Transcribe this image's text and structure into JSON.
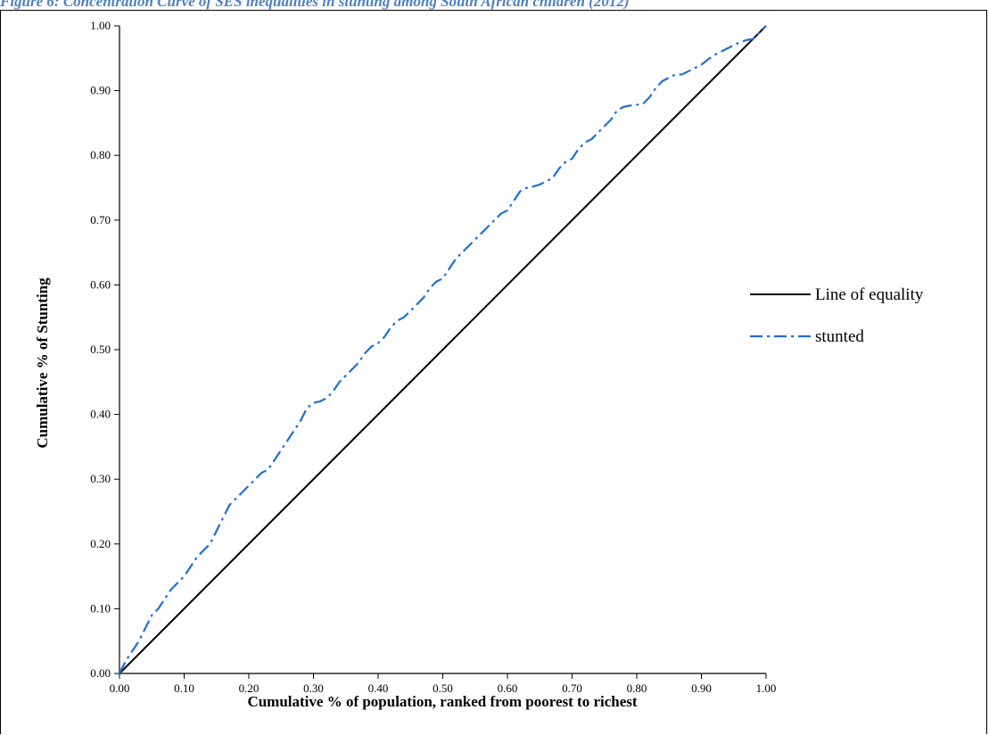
{
  "figure_caption": "Figure 6: Concentration Curve of SES inequalities in stunting among South African children (2012)",
  "chart_data": {
    "type": "line",
    "title": "Figure 6: Concentration Curve of SES inequalities in stunting among South African children (2012)",
    "xlabel": "Cumulative % of population, ranked from poorest to richest",
    "ylabel": "Cumulative % of Stunting",
    "xlim": [
      0,
      1
    ],
    "ylim": [
      0,
      1
    ],
    "x_ticks": [
      "0.00",
      "0.10",
      "0.20",
      "0.30",
      "0.40",
      "0.50",
      "0.60",
      "0.70",
      "0.80",
      "0.90",
      "1.00"
    ],
    "y_ticks": [
      "0.00",
      "0.10",
      "0.20",
      "0.30",
      "0.40",
      "0.50",
      "0.60",
      "0.70",
      "0.80",
      "0.90",
      "1.00"
    ],
    "grid": false,
    "legend_position": "right",
    "series": [
      {
        "name": "Line of equality",
        "color": "#000000",
        "style": "solid",
        "x": [
          0,
          1
        ],
        "y": [
          0,
          1
        ]
      },
      {
        "name": "stunted",
        "color": "#1f6fd1",
        "style": "dash-dot",
        "x": [
          0,
          0.01,
          0.02,
          0.03,
          0.04,
          0.05,
          0.06,
          0.07,
          0.08,
          0.09,
          0.1,
          0.11,
          0.12,
          0.13,
          0.14,
          0.15,
          0.16,
          0.17,
          0.18,
          0.19,
          0.2,
          0.21,
          0.22,
          0.23,
          0.24,
          0.25,
          0.26,
          0.27,
          0.28,
          0.29,
          0.3,
          0.31,
          0.32,
          0.33,
          0.34,
          0.35,
          0.36,
          0.37,
          0.38,
          0.39,
          0.4,
          0.41,
          0.42,
          0.43,
          0.44,
          0.45,
          0.46,
          0.47,
          0.48,
          0.49,
          0.5,
          0.51,
          0.52,
          0.53,
          0.54,
          0.55,
          0.56,
          0.57,
          0.58,
          0.59,
          0.6,
          0.61,
          0.62,
          0.63,
          0.64,
          0.65,
          0.66,
          0.67,
          0.68,
          0.69,
          0.7,
          0.71,
          0.72,
          0.73,
          0.74,
          0.75,
          0.76,
          0.77,
          0.78,
          0.79,
          0.8,
          0.81,
          0.82,
          0.83,
          0.84,
          0.85,
          0.86,
          0.87,
          0.88,
          0.89,
          0.9,
          0.91,
          0.92,
          0.93,
          0.94,
          0.95,
          0.96,
          0.97,
          0.98,
          0.99,
          1.0
        ],
        "y": [
          0,
          0.02,
          0.035,
          0.05,
          0.07,
          0.09,
          0.1,
          0.115,
          0.13,
          0.14,
          0.15,
          0.165,
          0.18,
          0.19,
          0.2,
          0.22,
          0.24,
          0.26,
          0.27,
          0.28,
          0.29,
          0.3,
          0.31,
          0.315,
          0.33,
          0.345,
          0.36,
          0.375,
          0.39,
          0.41,
          0.418,
          0.42,
          0.425,
          0.435,
          0.45,
          0.46,
          0.47,
          0.48,
          0.495,
          0.505,
          0.51,
          0.52,
          0.535,
          0.545,
          0.55,
          0.56,
          0.57,
          0.58,
          0.595,
          0.605,
          0.61,
          0.625,
          0.64,
          0.65,
          0.66,
          0.67,
          0.68,
          0.69,
          0.7,
          0.71,
          0.715,
          0.73,
          0.745,
          0.75,
          0.752,
          0.755,
          0.76,
          0.765,
          0.78,
          0.79,
          0.795,
          0.81,
          0.82,
          0.825,
          0.835,
          0.845,
          0.855,
          0.87,
          0.875,
          0.877,
          0.878,
          0.88,
          0.89,
          0.905,
          0.915,
          0.92,
          0.925,
          0.925,
          0.93,
          0.935,
          0.94,
          0.948,
          0.955,
          0.96,
          0.965,
          0.97,
          0.975,
          0.978,
          0.98,
          0.99,
          1.0
        ]
      }
    ]
  }
}
